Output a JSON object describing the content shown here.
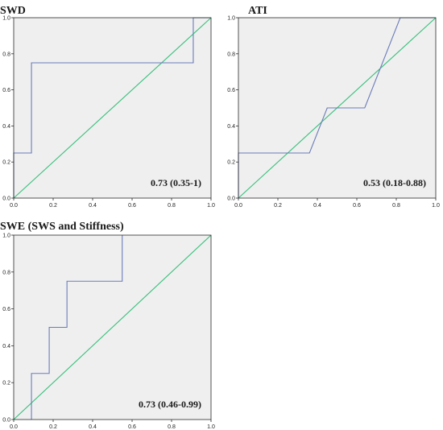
{
  "colors": {
    "plot_background": "#efefef",
    "frame": "#2b2b2b",
    "roc_curve": "#6a7bb8",
    "reference_line": "#35c07a"
  },
  "chart_data": [
    {
      "type": "line",
      "title": "SWD",
      "auc_label": "0.73 (0.35-1)",
      "xlim": [
        0,
        1
      ],
      "ylim": [
        0,
        1
      ],
      "x_ticks": [
        "0.0",
        "0.2",
        "0.4",
        "0.6",
        "0.8",
        "1.0"
      ],
      "y_ticks": [
        "0.0",
        "0.2",
        "0.4",
        "0.6",
        "0.8",
        "1.0"
      ],
      "grid": false,
      "series": [
        {
          "kind": "roc",
          "x": [
            0,
            0,
            0.09,
            0.09,
            0.91,
            0.91,
            1
          ],
          "y": [
            0,
            0.25,
            0.25,
            0.75,
            0.75,
            1,
            1
          ]
        },
        {
          "kind": "reference",
          "x": [
            0,
            1
          ],
          "y": [
            0,
            1
          ]
        }
      ]
    },
    {
      "type": "line",
      "title": "ATI",
      "auc_label": "0.53 (0.18-0.88)",
      "xlim": [
        0,
        1
      ],
      "ylim": [
        0,
        1
      ],
      "x_ticks": [
        "0.0",
        "0.2",
        "0.4",
        "0.6",
        "0.8",
        "1.0"
      ],
      "y_ticks": [
        "0.0",
        "0.2",
        "0.4",
        "0.6",
        "0.8",
        "1.0"
      ],
      "grid": false,
      "series": [
        {
          "kind": "roc",
          "x": [
            0,
            0,
            0.36,
            0.45,
            0.64,
            0.82,
            1
          ],
          "y": [
            0,
            0.25,
            0.25,
            0.5,
            0.5,
            1,
            1
          ]
        },
        {
          "kind": "reference",
          "x": [
            0,
            1
          ],
          "y": [
            0,
            1
          ]
        }
      ]
    },
    {
      "type": "line",
      "title": "SWE (SWS and Stiffness)",
      "auc_label": "0.73 (0.46-0.99)",
      "xlim": [
        0,
        1
      ],
      "ylim": [
        0,
        1
      ],
      "x_ticks": [
        "0.0",
        "0.2",
        "0.4",
        "0.6",
        "0.8",
        "1.0"
      ],
      "y_ticks": [
        "0.0",
        "0.2",
        "0.4",
        "0.6",
        "0.8",
        "1.0"
      ],
      "grid": false,
      "series": [
        {
          "kind": "roc",
          "x": [
            0.09,
            0.09,
            0.18,
            0.18,
            0.27,
            0.27,
            0.55,
            0.55
          ],
          "y": [
            0,
            0.25,
            0.25,
            0.5,
            0.5,
            0.75,
            0.75,
            1
          ]
        },
        {
          "kind": "reference",
          "x": [
            0,
            1
          ],
          "y": [
            0,
            1
          ]
        }
      ]
    }
  ]
}
